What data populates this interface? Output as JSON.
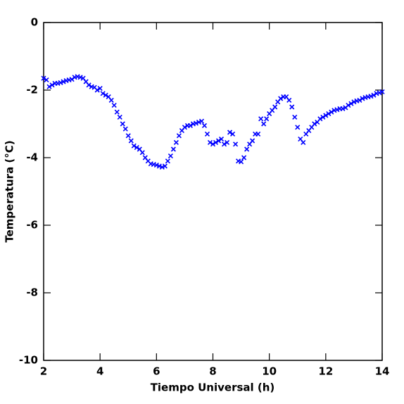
{
  "chart_data": {
    "type": "scatter",
    "x_label": "Tiempo Universal (h)",
    "y_label": "Temperatura (°C)",
    "color": "#0000ff",
    "marker": "x",
    "xlim": [
      2,
      14
    ],
    "ylim": [
      -10,
      0
    ],
    "xticks": [
      2,
      4,
      6,
      8,
      10,
      12,
      14
    ],
    "yticks": [
      0,
      -2,
      -4,
      -6,
      -8,
      -10
    ],
    "x": [
      2.0,
      2.1,
      2.2,
      2.3,
      2.4,
      2.5,
      2.6,
      2.7,
      2.8,
      2.9,
      3.0,
      3.1,
      3.2,
      3.3,
      3.4,
      3.5,
      3.6,
      3.7,
      3.8,
      3.9,
      4.0,
      4.1,
      4.2,
      4.3,
      4.4,
      4.5,
      4.6,
      4.7,
      4.8,
      4.9,
      5.0,
      5.1,
      5.2,
      5.3,
      5.4,
      5.5,
      5.6,
      5.7,
      5.8,
      5.9,
      6.0,
      6.1,
      6.2,
      6.3,
      6.4,
      6.5,
      6.6,
      6.7,
      6.8,
      6.9,
      7.0,
      7.1,
      7.2,
      7.3,
      7.4,
      7.5,
      7.6,
      7.7,
      7.8,
      7.9,
      8.0,
      8.1,
      8.2,
      8.3,
      8.4,
      8.5,
      8.6,
      8.7,
      8.8,
      8.9,
      9.0,
      9.1,
      9.2,
      9.3,
      9.4,
      9.5,
      9.6,
      9.7,
      9.8,
      9.9,
      10.0,
      10.1,
      10.2,
      10.3,
      10.4,
      10.5,
      10.6,
      10.7,
      10.8,
      10.9,
      11.0,
      11.1,
      11.2,
      11.3,
      11.4,
      11.5,
      11.6,
      11.7,
      11.8,
      11.9,
      12.0,
      12.1,
      12.2,
      12.3,
      12.4,
      12.5,
      12.6,
      12.7,
      12.8,
      12.9,
      13.0,
      13.1,
      13.2,
      13.3,
      13.4,
      13.5,
      13.6,
      13.7,
      13.8,
      13.9,
      14.0
    ],
    "values": [
      -1.65,
      -1.7,
      -1.9,
      -1.85,
      -1.8,
      -1.8,
      -1.78,
      -1.75,
      -1.72,
      -1.7,
      -1.68,
      -1.62,
      -1.6,
      -1.62,
      -1.65,
      -1.75,
      -1.85,
      -1.9,
      -1.92,
      -2.0,
      -1.95,
      -2.1,
      -2.15,
      -2.2,
      -2.3,
      -2.45,
      -2.65,
      -2.8,
      -3.0,
      -3.15,
      -3.35,
      -3.5,
      -3.65,
      -3.7,
      -3.75,
      -3.85,
      -4.0,
      -4.1,
      -4.18,
      -4.2,
      -4.22,
      -4.25,
      -4.28,
      -4.25,
      -4.1,
      -3.95,
      -3.75,
      -3.55,
      -3.35,
      -3.2,
      -3.1,
      -3.05,
      -3.05,
      -3.0,
      -2.98,
      -2.95,
      -2.92,
      -3.05,
      -3.3,
      -3.55,
      -3.6,
      -3.55,
      -3.5,
      -3.45,
      -3.6,
      -3.55,
      -3.25,
      -3.3,
      -3.6,
      -4.1,
      -4.12,
      -4.0,
      -3.75,
      -3.6,
      -3.5,
      -3.3,
      -3.3,
      -2.85,
      -3.0,
      -2.85,
      -2.7,
      -2.6,
      -2.5,
      -2.35,
      -2.25,
      -2.2,
      -2.2,
      -2.3,
      -2.5,
      -2.8,
      -3.1,
      -3.45,
      -3.55,
      -3.3,
      -3.2,
      -3.1,
      -3.0,
      -2.95,
      -2.85,
      -2.8,
      -2.75,
      -2.7,
      -2.65,
      -2.6,
      -2.58,
      -2.55,
      -2.55,
      -2.52,
      -2.45,
      -2.4,
      -2.35,
      -2.32,
      -2.3,
      -2.25,
      -2.22,
      -2.2,
      -2.18,
      -2.15,
      -2.1,
      -2.08,
      -2.05
    ]
  }
}
